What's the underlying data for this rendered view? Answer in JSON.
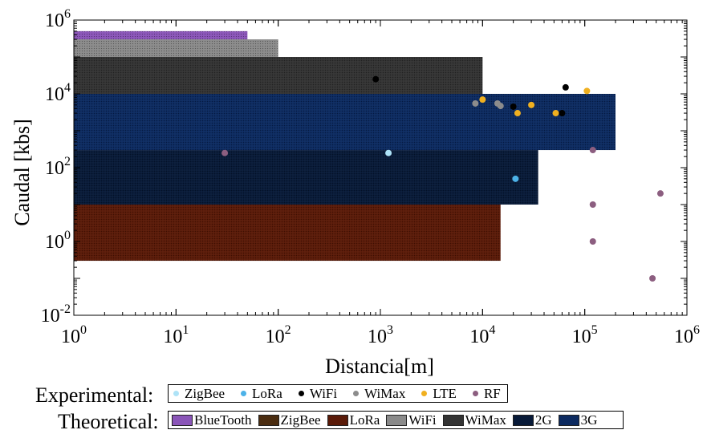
{
  "chart_data": {
    "type": "scatter",
    "xlabel": "Distancia[m]",
    "ylabel": "Caudal [kbs]",
    "xscale": "log",
    "yscale": "log",
    "xlim": [
      1,
      1000000
    ],
    "ylim": [
      0.01,
      1000000
    ],
    "x_tick_labels": [
      "10^0",
      "10^1",
      "10^2",
      "10^3",
      "10^4",
      "10^5",
      "10^6"
    ],
    "y_tick_labels": [
      "10^-2",
      "10^0",
      "10^2",
      "10^4",
      "10^6"
    ],
    "grid": false,
    "theoretical_ranges": [
      {
        "name": "LoRa",
        "color": "#5a1a08",
        "x": [
          1,
          15000
        ],
        "y": [
          0.3,
          10
        ]
      },
      {
        "name": "2G",
        "color": "#081a38",
        "x": [
          1,
          35000
        ],
        "y": [
          10,
          300
        ]
      },
      {
        "name": "3G",
        "color": "#0c2a60",
        "x": [
          1,
          200000
        ],
        "y": [
          300,
          10000
        ]
      },
      {
        "name": "WiMax",
        "color": "#333333",
        "x": [
          1,
          10000
        ],
        "y": [
          10000,
          100000
        ]
      },
      {
        "name": "WiFi",
        "color": "#8a8a8a",
        "x": [
          1,
          100
        ],
        "y": [
          100000,
          300000
        ]
      },
      {
        "name": "BlueTooth",
        "color": "#8a55b8",
        "x": [
          1,
          50
        ],
        "y": [
          300000,
          500000
        ]
      }
    ],
    "experimental_points": [
      {
        "series": "ZigBee",
        "color": "#aee3f7",
        "x": 1200,
        "y": 250
      },
      {
        "series": "LoRa",
        "color": "#4cb2e8",
        "x": 21000,
        "y": 50
      },
      {
        "series": "WiFi",
        "color": "#000000",
        "x": 900,
        "y": 25000
      },
      {
        "series": "WiFi",
        "color": "#000000",
        "x": 20000,
        "y": 4500
      },
      {
        "series": "WiFi",
        "color": "#000000",
        "x": 60000,
        "y": 3000
      },
      {
        "series": "WiFi",
        "color": "#000000",
        "x": 65000,
        "y": 15000
      },
      {
        "series": "WiMax",
        "color": "#8c8c8c",
        "x": 8500,
        "y": 5500
      },
      {
        "series": "WiMax",
        "color": "#8c8c8c",
        "x": 14000,
        "y": 5500
      },
      {
        "series": "WiMax",
        "color": "#8c8c8c",
        "x": 15000,
        "y": 4700
      },
      {
        "series": "LTE",
        "color": "#f0b020",
        "x": 10000,
        "y": 7000
      },
      {
        "series": "LTE",
        "color": "#f0b020",
        "x": 22000,
        "y": 3000
      },
      {
        "series": "LTE",
        "color": "#f0b020",
        "x": 30000,
        "y": 5000
      },
      {
        "series": "LTE",
        "color": "#f0b020",
        "x": 52000,
        "y": 3000
      },
      {
        "series": "LTE",
        "color": "#f0b020",
        "x": 105000,
        "y": 12000
      },
      {
        "series": "RF",
        "color": "#8c5e80",
        "x": 30,
        "y": 250
      },
      {
        "series": "RF",
        "color": "#8c5e80",
        "x": 120000,
        "y": 300
      },
      {
        "series": "RF",
        "color": "#8c5e80",
        "x": 120000,
        "y": 10
      },
      {
        "series": "RF",
        "color": "#8c5e80",
        "x": 120000,
        "y": 1
      },
      {
        "series": "RF",
        "color": "#8c5e80",
        "x": 550000,
        "y": 20
      },
      {
        "series": "RF",
        "color": "#8c5e80",
        "x": 460000,
        "y": 0.1
      }
    ]
  },
  "legend": {
    "experimental_title": "Experimental:",
    "experimental": [
      {
        "label": "ZigBee",
        "color": "#aee3f7"
      },
      {
        "label": "LoRa",
        "color": "#4cb2e8"
      },
      {
        "label": "WiFi",
        "color": "#000000"
      },
      {
        "label": "WiMax",
        "color": "#8c8c8c"
      },
      {
        "label": "LTE",
        "color": "#f0b020"
      },
      {
        "label": "RF",
        "color": "#8c5e80"
      }
    ],
    "theoretical_title": "Theoretical:",
    "theoretical": [
      {
        "label": "BlueTooth",
        "color": "#8a55b8"
      },
      {
        "label": "ZigBee",
        "color": "#4a2c10"
      },
      {
        "label": "LoRa",
        "color": "#5a1a08"
      },
      {
        "label": "WiFi",
        "color": "#8a8a8a"
      },
      {
        "label": "WiMax",
        "color": "#333333"
      },
      {
        "label": "2G",
        "color": "#081a38"
      },
      {
        "label": "3G",
        "color": "#0c2a60"
      }
    ]
  }
}
